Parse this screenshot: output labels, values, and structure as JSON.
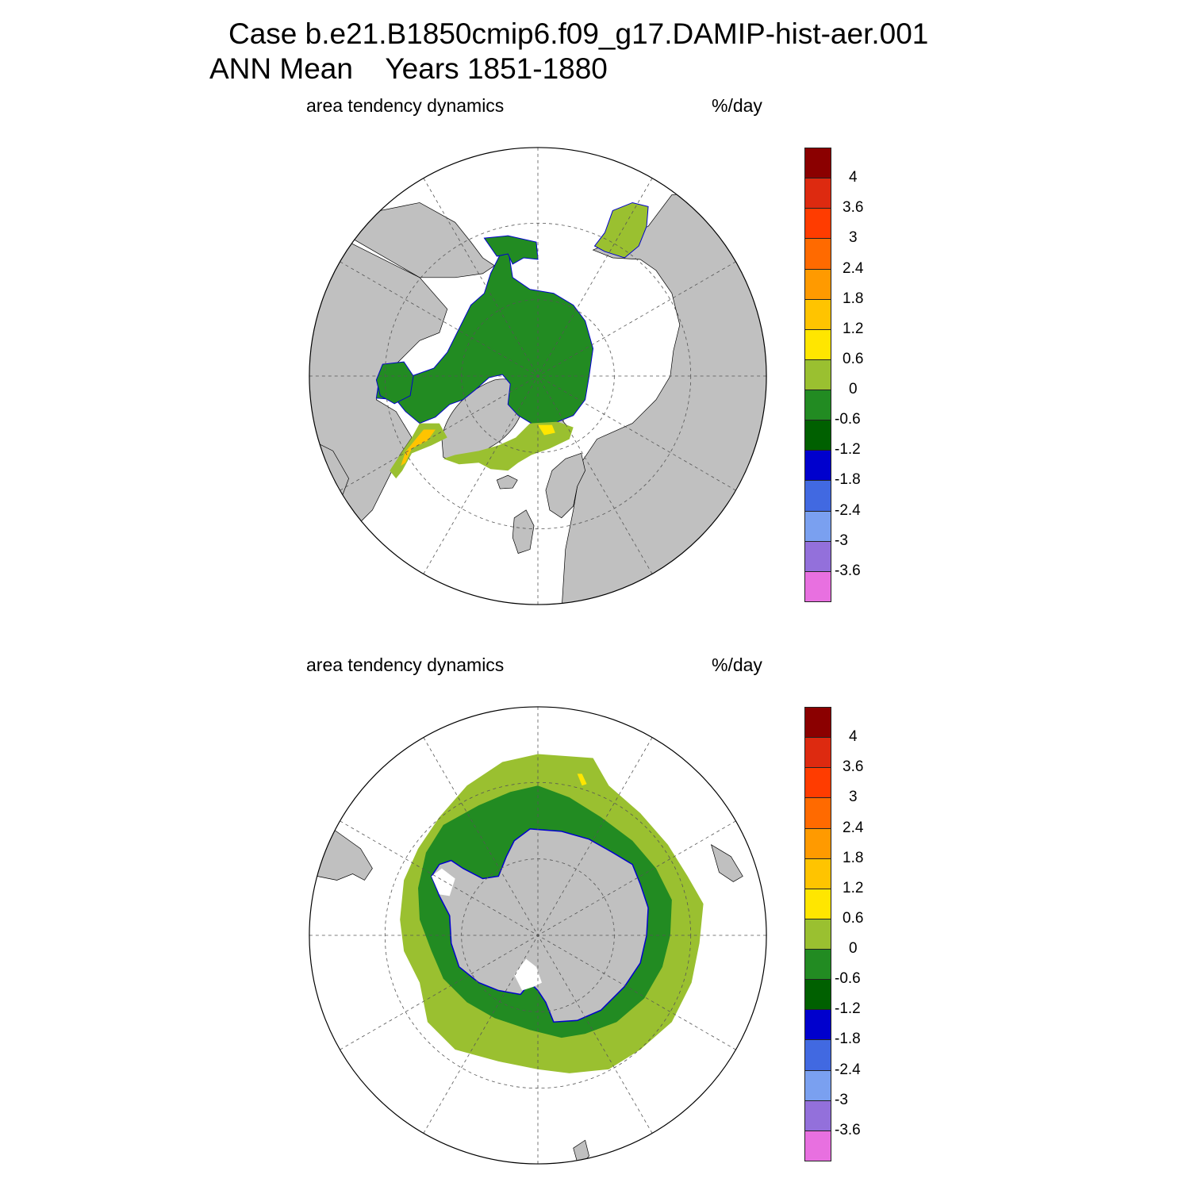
{
  "title": {
    "line1": "Case b.e21.B1850cmip6.f09_g17.DAMIP-hist-aer.001",
    "line2": "ANN Mean    Years 1851-1880"
  },
  "panels": [
    {
      "id": "north",
      "variable": "area tendency dynamics",
      "units": "%/day"
    },
    {
      "id": "south",
      "variable": "area tendency dynamics",
      "units": "%/day"
    }
  ],
  "colorbar": {
    "tick_labels": [
      "4",
      "3.6",
      "3",
      "2.4",
      "1.8",
      "1.2",
      "0.6",
      "0",
      "-0.6",
      "-1.2",
      "-1.8",
      "-2.4",
      "-3",
      "-3.6"
    ],
    "colors_top_to_bottom": [
      "#8b0000",
      "#dd2a10",
      "#ff3c00",
      "#ff6a00",
      "#ff9a00",
      "#ffc400",
      "#ffe600",
      "#9ac030",
      "#228b22",
      "#006000",
      "#0000cd",
      "#4169e1",
      "#7aa0f0",
      "#9370db",
      "#e870e0"
    ]
  },
  "colors": {
    "land": "#c0c0c0",
    "no_data": "#ffffff",
    "grid": "#555555"
  }
}
